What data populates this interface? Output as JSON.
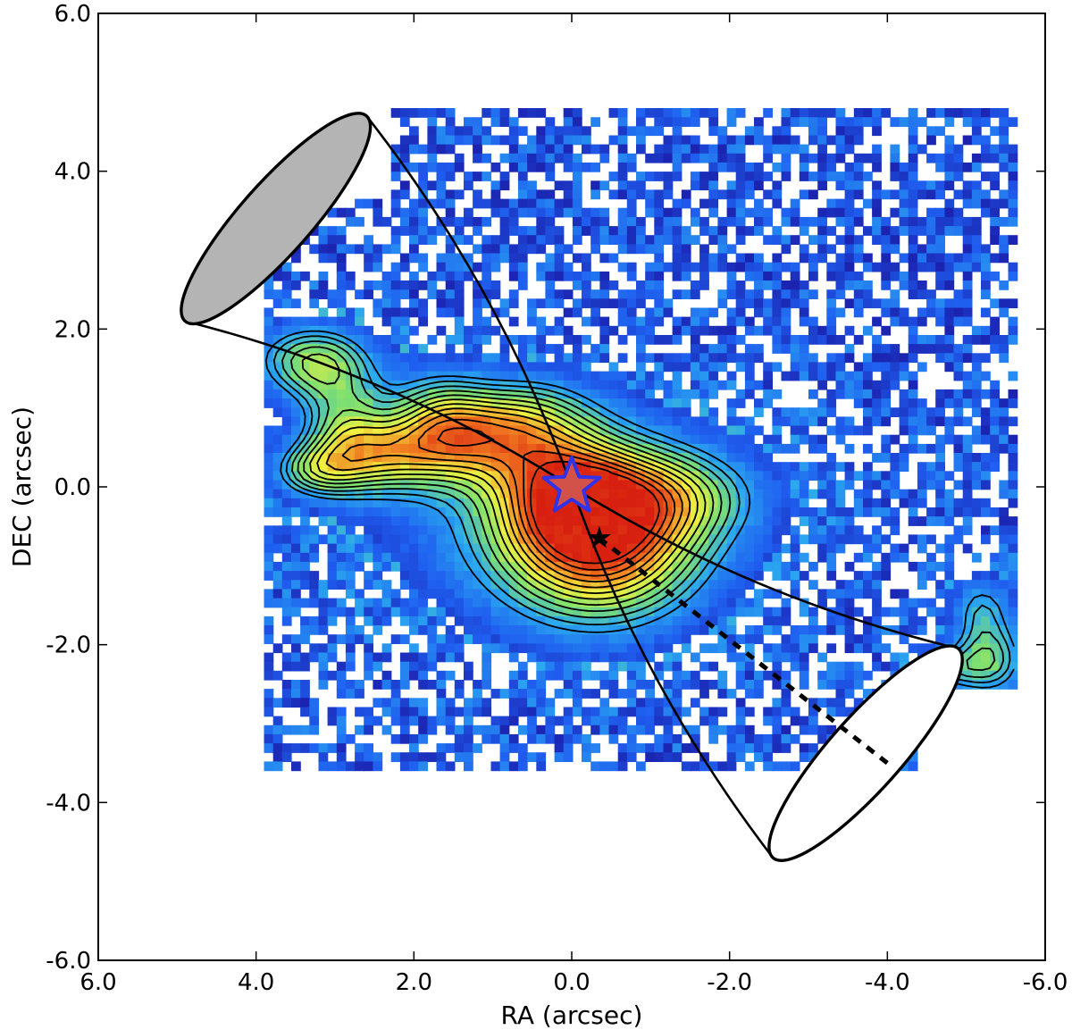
{
  "chart_data": {
    "type": "heatmap",
    "xlabel": "RA (arcsec)",
    "ylabel": "DEC (arcsec)",
    "xlim": [
      6.0,
      -6.0
    ],
    "ylim": [
      -6.0,
      6.0
    ],
    "x_ticks": [
      "6.0",
      "4.0",
      "2.0",
      "0.0",
      "-2.0",
      "-4.0",
      "-6.0"
    ],
    "y_ticks": [
      "-6.0",
      "-4.0",
      "-2.0",
      "0.0",
      "2.0",
      "4.0",
      "6.0"
    ],
    "grid": false,
    "map_extent": {
      "ra": [
        3.9,
        -5.6
      ],
      "dec": [
        -3.6,
        4.8
      ]
    },
    "colormap": [
      "#ffffff",
      "#1a1aa6",
      "#1f5ff0",
      "#2aa8f0",
      "#7fe070",
      "#f0f040",
      "#f07a20",
      "#d82010"
    ],
    "peak": {
      "ra": -0.35,
      "dec": -0.65,
      "intensity": 1.0
    },
    "nucleus_marker": {
      "ra": 0.0,
      "dec": 0.0,
      "color": "#d2524a",
      "outline": "#3232e6"
    },
    "secondary_marker": {
      "ra": -0.35,
      "dec": -0.65
    },
    "ionization_cone": {
      "apex": {
        "ra": 0.0,
        "dec": 0.0
      },
      "ne_cap": {
        "a": {
          "ra": 4.9,
          "dec": 2.1
        },
        "b": {
          "ra": 2.6,
          "dec": 4.7
        },
        "fill": "#b4b4b4"
      },
      "sw_cap": {
        "a": {
          "ra": -2.55,
          "dec": -4.7
        },
        "b": {
          "ra": -4.9,
          "dec": -2.05
        },
        "fill": "#ffffff"
      }
    },
    "dotted_axis": [
      {
        "ra": -0.35,
        "dec": -0.65
      },
      {
        "ra": -4.0,
        "dec": -3.5
      }
    ],
    "emission_blobs": [
      {
        "ra": -0.35,
        "dec": -0.65,
        "s_ra": 0.9,
        "s_dec": 0.75,
        "amp": 0.78
      },
      {
        "ra": 0.1,
        "dec": 0.0,
        "s_ra": 0.6,
        "s_dec": 0.5,
        "amp": 0.35
      },
      {
        "ra": 0.2,
        "dec": -0.35,
        "s_ra": 1.8,
        "s_dec": 1.0,
        "amp": 0.25
      },
      {
        "ra": 3.3,
        "dec": 1.6,
        "s_ra": 0.55,
        "s_dec": 0.35,
        "amp": 0.5
      },
      {
        "ra": 2.9,
        "dec": 0.8,
        "s_ra": 0.4,
        "s_dec": 0.5,
        "amp": 0.35
      },
      {
        "ra": 2.4,
        "dec": 0.4,
        "s_ra": 0.55,
        "s_dec": 0.35,
        "amp": 0.45
      },
      {
        "ra": 1.7,
        "dec": 0.9,
        "s_ra": 0.45,
        "s_dec": 0.45,
        "amp": 0.35
      },
      {
        "ra": 1.2,
        "dec": 0.6,
        "s_ra": 0.6,
        "s_dec": 0.4,
        "amp": 0.4
      },
      {
        "ra": 3.3,
        "dec": 0.2,
        "s_ra": 0.4,
        "s_dec": 0.25,
        "amp": 0.35
      },
      {
        "ra": 0.5,
        "dec": 0.9,
        "s_ra": 0.6,
        "s_dec": 0.4,
        "amp": 0.3
      },
      {
        "ra": -1.3,
        "dec": -0.1,
        "s_ra": 0.8,
        "s_dec": 0.4,
        "amp": 0.28
      },
      {
        "ra": -5.3,
        "dec": -2.2,
        "s_ra": 0.35,
        "s_dec": 0.35,
        "amp": 0.45
      },
      {
        "ra": -5.2,
        "dec": -1.5,
        "s_ra": 0.3,
        "s_dec": 0.3,
        "amp": 0.3
      },
      {
        "ra": -4.7,
        "dec": -2.3,
        "s_ra": 0.3,
        "s_dec": 0.2,
        "amp": 0.28
      }
    ],
    "contour_levels": [
      0.3,
      0.36,
      0.42,
      0.48,
      0.54,
      0.6,
      0.66,
      0.72,
      0.78,
      0.84,
      0.9,
      0.96
    ]
  }
}
